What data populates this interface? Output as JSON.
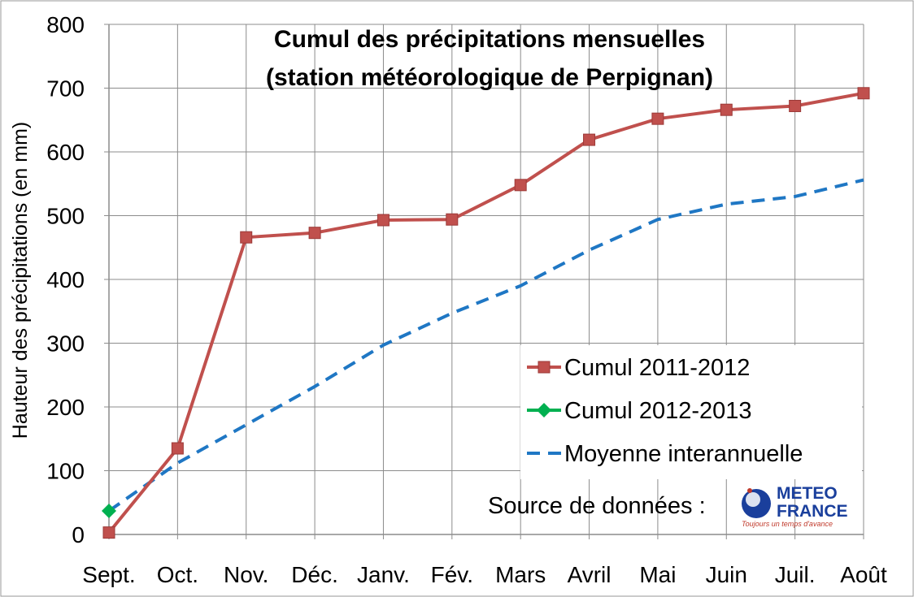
{
  "chart_data": {
    "type": "line",
    "title_line1": "Cumul des précipitations mensuelles",
    "title_line2": "(station météorologique de Perpignan)",
    "xlabel": "",
    "ylabel": "Hauteur des précipitations (en mm)",
    "ylim": [
      0,
      800
    ],
    "yticks": [
      "0",
      "100",
      "200",
      "300",
      "400",
      "500",
      "600",
      "700",
      "800"
    ],
    "categories": [
      "Sept.",
      "Oct.",
      "Nov.",
      "Déc.",
      "Janv.",
      "Fév.",
      "Mars",
      "Avril",
      "Mai",
      "Juin",
      "Juil.",
      "Août"
    ],
    "grid": true,
    "legend_position": "bottom-right",
    "series": [
      {
        "name": "Cumul 2011-2012",
        "color": "#c0504d",
        "marker": "square",
        "style": "solid",
        "values": [
          3,
          135,
          466,
          473,
          493,
          494,
          548,
          619,
          652,
          666,
          672,
          692
        ]
      },
      {
        "name": "Cumul 2012-2013",
        "color": "#00b050",
        "marker": "diamond",
        "style": "solid",
        "values": [
          37,
          null,
          null,
          null,
          null,
          null,
          null,
          null,
          null,
          null,
          null,
          null
        ]
      },
      {
        "name": "Moyenne interannuelle",
        "color": "#1f77c4",
        "marker": "none",
        "style": "dashed",
        "values": [
          37,
          112,
          172,
          232,
          297,
          347,
          390,
          446,
          494,
          518,
          530,
          556
        ]
      }
    ],
    "source_label": "Source de données :",
    "logo": {
      "line1": "METEO",
      "line2": "FRANCE",
      "tagline": "Toujours un temps d'avance"
    }
  }
}
